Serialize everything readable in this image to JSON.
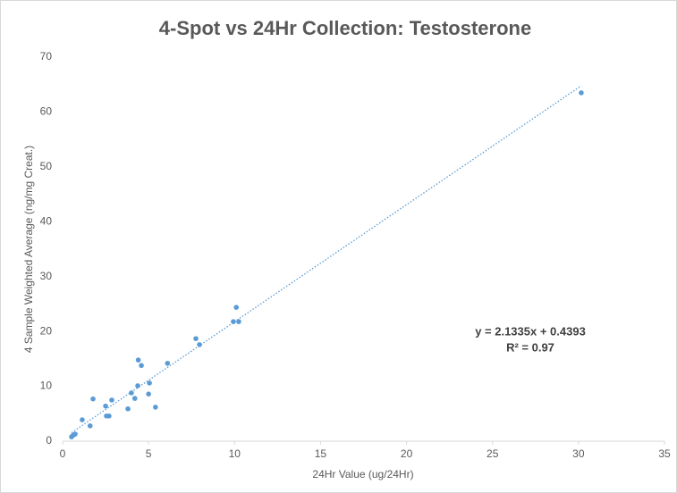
{
  "chart_data": {
    "type": "scatter",
    "title": "4-Spot vs 24Hr Collection: Testosterone",
    "x_label": "24Hr Value (ug/24Hr)",
    "y_label": "4 Sample Weighted Average (ng/mg Creat.)",
    "series": [
      {
        "name": "Testosterone",
        "color": "#5b9bd5",
        "x": [
          0.52,
          0.62,
          0.73,
          1.14,
          1.6,
          1.77,
          2.5,
          2.55,
          2.7,
          2.86,
          3.8,
          4.0,
          4.2,
          4.37,
          4.4,
          4.58,
          5.0,
          5.05,
          5.4,
          6.1,
          7.75,
          7.96,
          9.93,
          10.1,
          10.24,
          30.16
        ],
        "values": [
          0.8,
          1.1,
          1.3,
          3.9,
          2.8,
          7.7,
          6.4,
          4.6,
          4.6,
          7.5,
          5.9,
          8.8,
          7.8,
          10.1,
          14.8,
          13.8,
          8.6,
          10.6,
          6.2,
          14.2,
          18.7,
          17.6,
          21.8,
          24.4,
          21.8,
          63.5
        ]
      }
    ],
    "trendline": {
      "slope": 2.1335,
      "intercept": 0.4393
    },
    "annotations": [
      "y = 2.1335x + 0.4393",
      "R² = 0.97"
    ],
    "xlim": [
      0,
      35
    ],
    "xticks": [
      0,
      5,
      10,
      15,
      20,
      25,
      30,
      35
    ],
    "ylim": [
      0,
      70
    ],
    "yticks": [
      0,
      10,
      20,
      30,
      40,
      50,
      60,
      70
    ],
    "grid": false
  }
}
